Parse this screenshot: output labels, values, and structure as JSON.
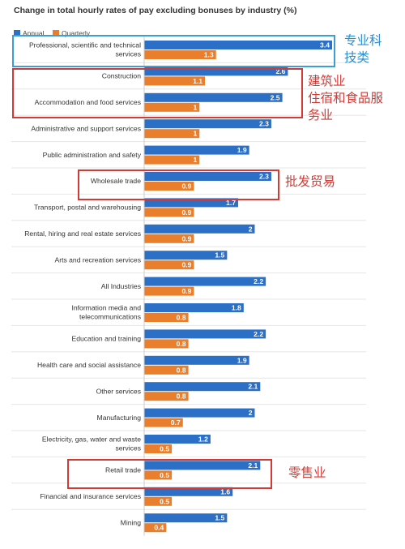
{
  "chart_data": {
    "type": "bar",
    "title": "Change in total hourly rates of pay excluding bonuses by industry (%)",
    "legend_position": "top-left",
    "grid": false,
    "xlim": [
      0,
      3.4
    ],
    "categories": [
      [
        "Professional, scientific and technical",
        "services"
      ],
      [
        "Construction"
      ],
      [
        "Accommodation and food services"
      ],
      [
        "Administrative and support services"
      ],
      [
        "Public administration and safety"
      ],
      [
        "Wholesale trade"
      ],
      [
        "Transport, postal and warehousing"
      ],
      [
        "Rental, hiring and real estate services"
      ],
      [
        "Arts and recreation services"
      ],
      [
        "All Industries"
      ],
      [
        "Information media and",
        "telecommunications"
      ],
      [
        "Education and training"
      ],
      [
        "Health care and social assistance"
      ],
      [
        "Other services"
      ],
      [
        "Manufacturing"
      ],
      [
        "Electricity, gas, water and waste",
        "services"
      ],
      [
        "Retail trade"
      ],
      [
        "Financial and insurance services"
      ],
      [
        "Mining"
      ]
    ],
    "series": [
      {
        "name": "Annual",
        "color": "#2b6fc6",
        "values": [
          3.4,
          2.6,
          2.5,
          2.3,
          1.9,
          2.3,
          1.7,
          2,
          1.5,
          2.2,
          1.8,
          2.2,
          1.9,
          2.1,
          2,
          1.2,
          2.1,
          1.6,
          1.5
        ]
      },
      {
        "name": "Quarterly",
        "color": "#e97e2c",
        "values": [
          1.3,
          1.1,
          1,
          1,
          1,
          0.9,
          0.9,
          0.9,
          0.9,
          0.9,
          0.8,
          0.8,
          0.8,
          0.8,
          0.7,
          0.5,
          0.5,
          0.5,
          0.4
        ]
      }
    ]
  },
  "annotations": [
    {
      "text": "专业科\n技类",
      "color": "#2b8ed0"
    },
    {
      "text": "建筑业\n住宿和食品服\n务业",
      "color": "#d33a36"
    },
    {
      "text": "批发贸易",
      "color": "#d33a36"
    },
    {
      "text": "零售业",
      "color": "#d33a36"
    }
  ]
}
